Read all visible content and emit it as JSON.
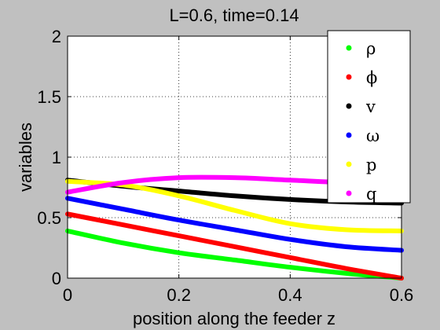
{
  "chart_data": {
    "type": "line",
    "title": "L=0.6, time=0.14",
    "xlabel": "position along the feeder z",
    "ylabel": "variables",
    "xlim": [
      0,
      0.6
    ],
    "ylim": [
      0,
      2
    ],
    "x_ticks": [
      "0",
      "0.2",
      "0.4",
      "0.6"
    ],
    "y_ticks": [
      "0",
      "0.5",
      "1",
      "1.5",
      "2"
    ],
    "grid": true,
    "legend_position": "top-right",
    "series": [
      {
        "name": "ρ",
        "color": "#00ff00",
        "x": [
          0,
          0.1,
          0.2,
          0.3,
          0.4,
          0.5,
          0.6
        ],
        "y": [
          0.39,
          0.29,
          0.21,
          0.15,
          0.09,
          0.04,
          0.0
        ]
      },
      {
        "name": "ϕ",
        "color": "#ff0000",
        "x": [
          0,
          0.1,
          0.2,
          0.3,
          0.4,
          0.5,
          0.6
        ],
        "y": [
          0.53,
          0.44,
          0.35,
          0.26,
          0.17,
          0.08,
          0.0
        ]
      },
      {
        "name": "v",
        "color": "#000000",
        "x": [
          0,
          0.1,
          0.2,
          0.3,
          0.4,
          0.5,
          0.6
        ],
        "y": [
          0.81,
          0.76,
          0.72,
          0.68,
          0.65,
          0.63,
          0.62
        ]
      },
      {
        "name": "ω",
        "color": "#0000ff",
        "x": [
          0,
          0.1,
          0.2,
          0.3,
          0.4,
          0.5,
          0.6
        ],
        "y": [
          0.66,
          0.57,
          0.48,
          0.4,
          0.32,
          0.26,
          0.23
        ]
      },
      {
        "name": "p",
        "color": "#ffff00",
        "x": [
          0,
          0.1,
          0.2,
          0.3,
          0.4,
          0.5,
          0.6
        ],
        "y": [
          0.8,
          0.77,
          0.68,
          0.56,
          0.45,
          0.4,
          0.39
        ]
      },
      {
        "name": "q",
        "color": "#ff00ff",
        "x": [
          0,
          0.1,
          0.2,
          0.3,
          0.4,
          0.5,
          0.6
        ],
        "y": [
          0.71,
          0.79,
          0.83,
          0.83,
          0.81,
          0.79,
          0.79
        ]
      }
    ]
  }
}
